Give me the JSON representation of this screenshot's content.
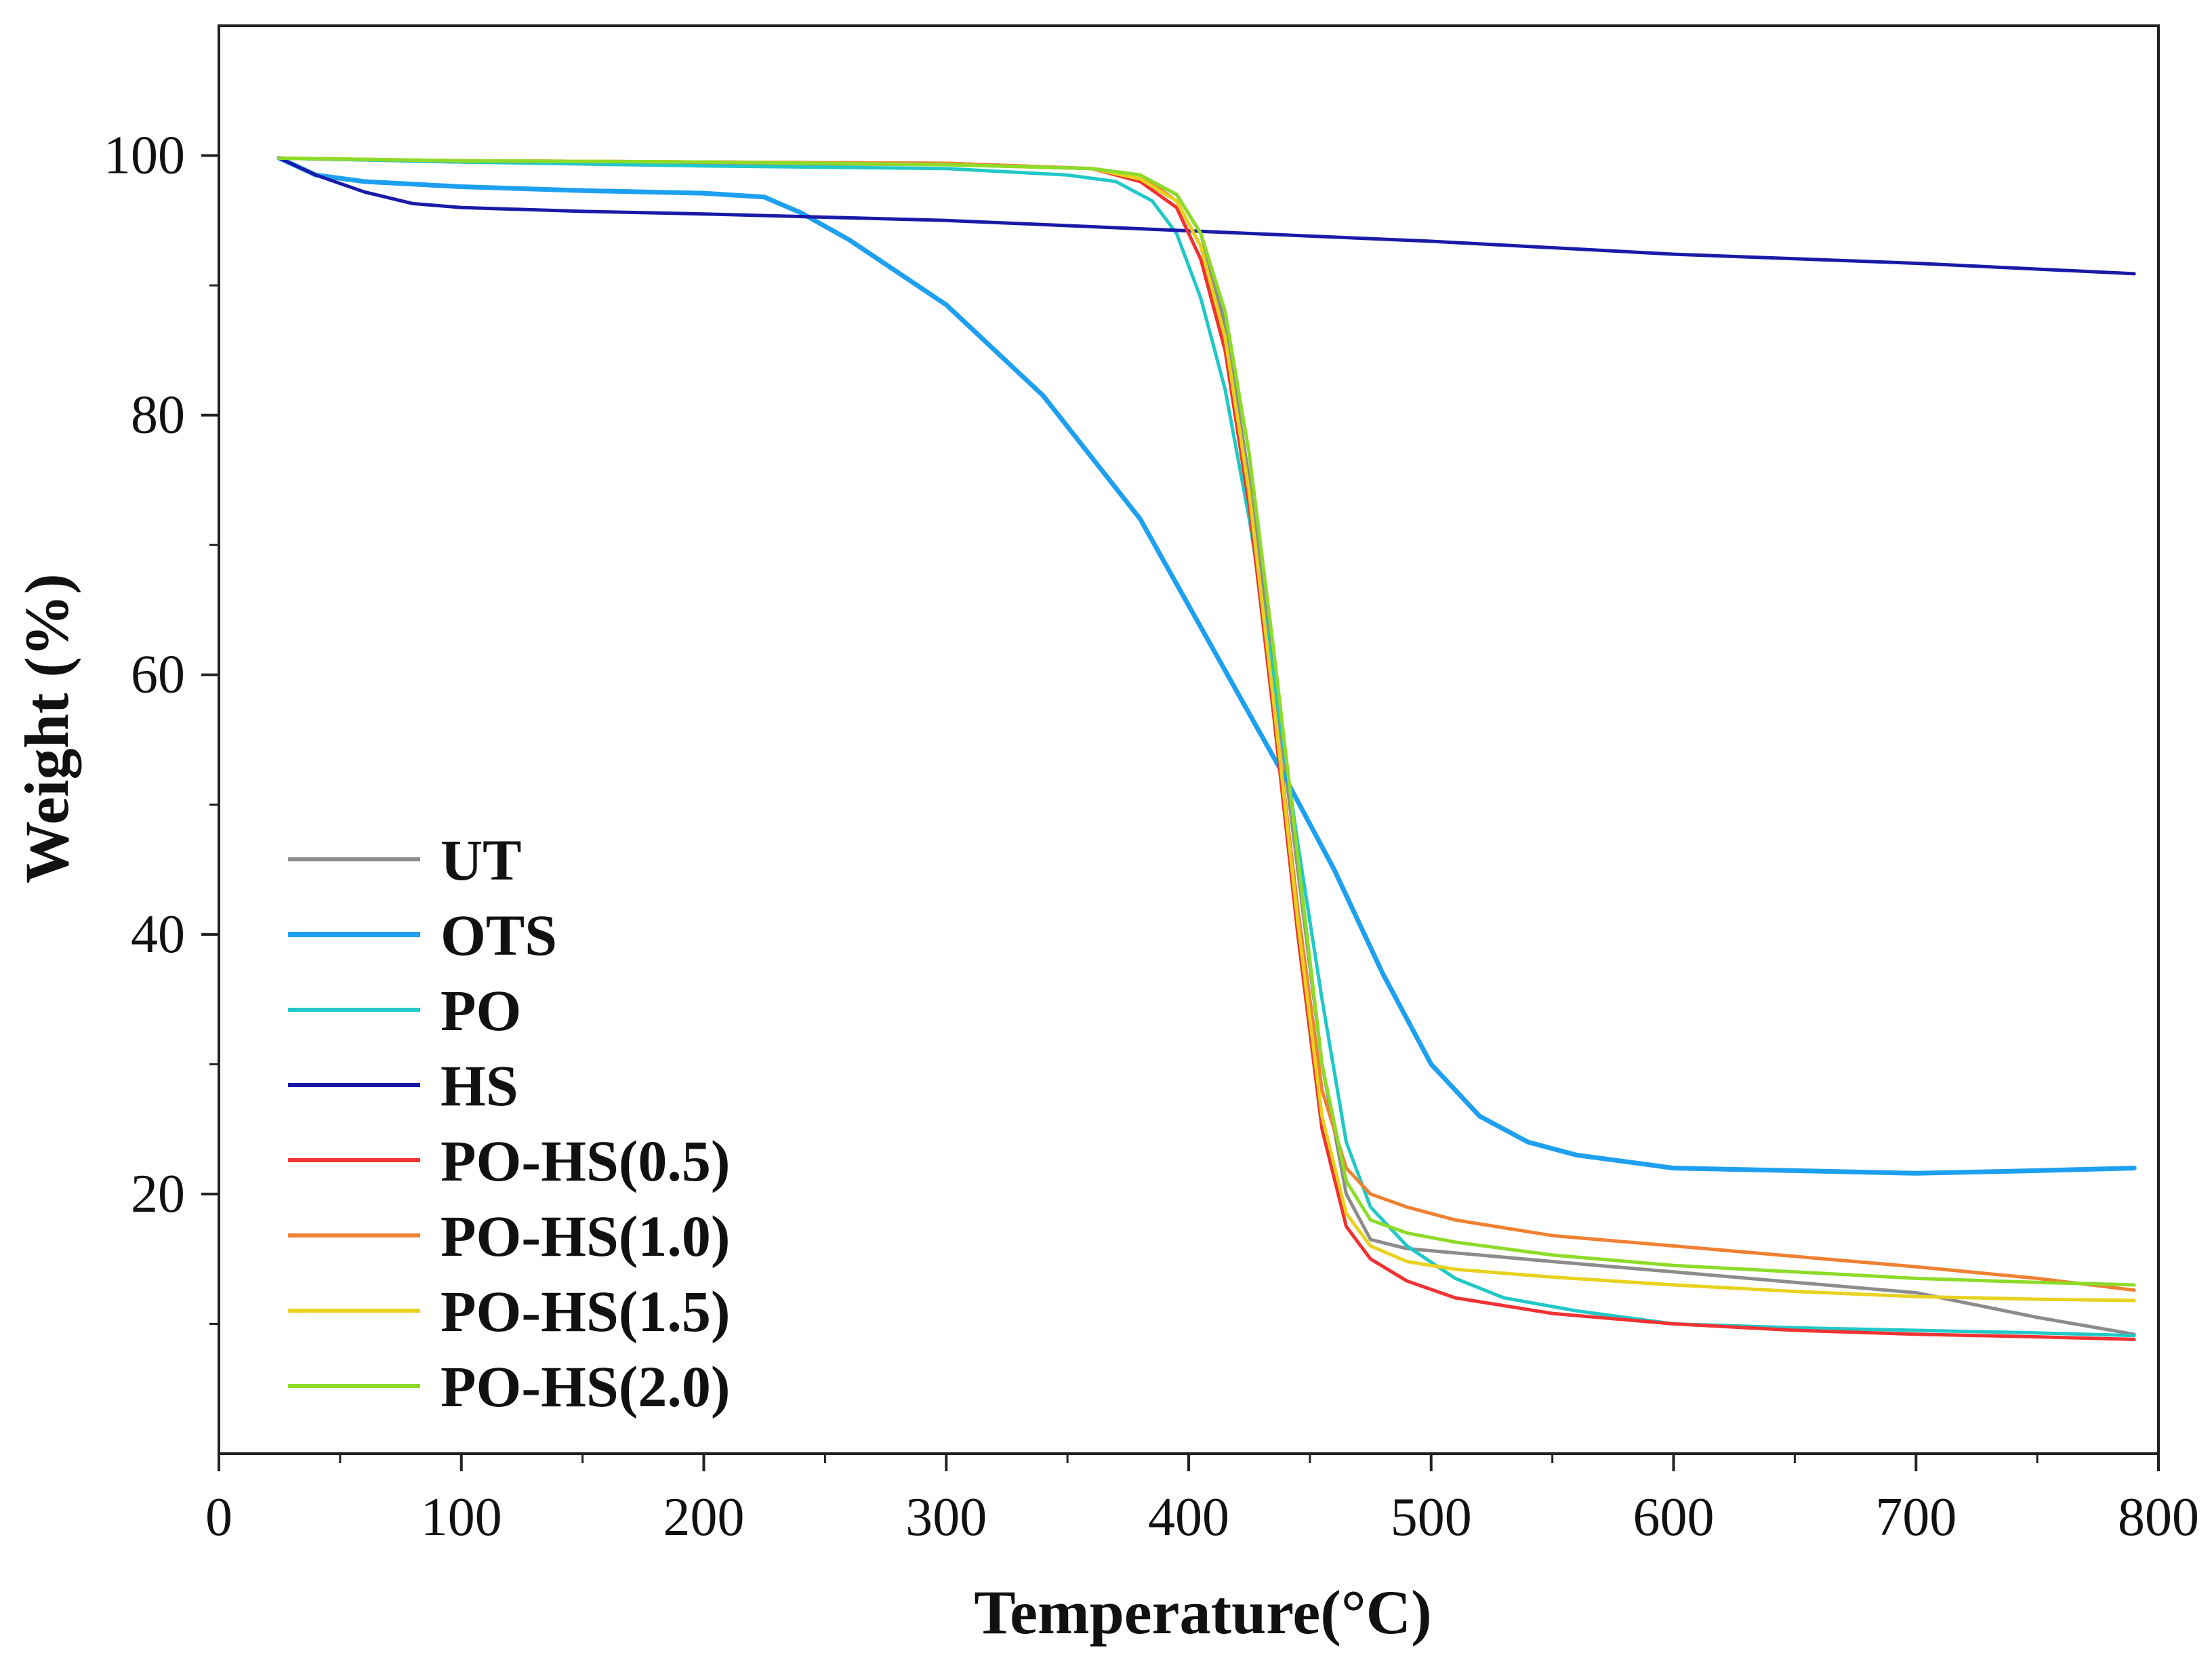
{
  "chart_data": {
    "type": "line",
    "title": "",
    "xlabel": "Temperature(°C)",
    "ylabel": "Weight (%)",
    "xlim": [
      0,
      800
    ],
    "ylim": [
      0,
      110
    ],
    "xticks": [
      "0",
      "100",
      "200",
      "300",
      "400",
      "500",
      "600",
      "700",
      "800"
    ],
    "yticks": [
      "20",
      "40",
      "60",
      "80",
      "100"
    ],
    "legend_position": "lower-left",
    "series": [
      {
        "name": "UT",
        "color": "#8c8c8c",
        "x": [
          25,
          100,
          200,
          300,
          360,
          380,
          395,
          405,
          415,
          425,
          435,
          445,
          455,
          465,
          475,
          490,
          550,
          600,
          650,
          700,
          750,
          790
        ],
        "y": [
          99.8,
          99.5,
          99.4,
          99.3,
          99.0,
          98.5,
          97.0,
          94.0,
          87.0,
          75.0,
          60.0,
          45.0,
          30.0,
          20.0,
          16.5,
          15.8,
          14.8,
          14.0,
          13.2,
          12.4,
          10.5,
          9.2
        ]
      },
      {
        "name": "OTS",
        "color": "#1ea0f0",
        "x": [
          25,
          40,
          60,
          100,
          150,
          200,
          225,
          240,
          260,
          300,
          340,
          380,
          410,
          440,
          460,
          480,
          500,
          520,
          540,
          560,
          600,
          650,
          700,
          750,
          790
        ],
        "y": [
          99.8,
          98.5,
          98.0,
          97.6,
          97.3,
          97.1,
          96.8,
          95.6,
          93.5,
          88.5,
          81.5,
          72.0,
          62.0,
          52.0,
          45.0,
          37.0,
          30.0,
          26.0,
          24.0,
          23.0,
          22.0,
          21.8,
          21.6,
          21.8,
          22.0
        ]
      },
      {
        "name": "PO",
        "color": "#20c8c8",
        "x": [
          25,
          100,
          200,
          300,
          350,
          370,
          385,
          395,
          405,
          415,
          425,
          435,
          445,
          455,
          465,
          475,
          490,
          510,
          530,
          560,
          600,
          650,
          700,
          750,
          790
        ],
        "y": [
          99.8,
          99.5,
          99.2,
          99.0,
          98.5,
          98.0,
          96.5,
          94.0,
          89.0,
          82.0,
          72.0,
          60.0,
          47.0,
          35.0,
          24.0,
          19.0,
          16.0,
          13.5,
          12.0,
          11.0,
          10.0,
          9.7,
          9.5,
          9.3,
          9.1
        ]
      },
      {
        "name": "HS",
        "color": "#1a1aa8",
        "x": [
          25,
          40,
          60,
          80,
          100,
          150,
          200,
          300,
          400,
          500,
          600,
          700,
          790
        ],
        "y": [
          99.8,
          98.5,
          97.2,
          96.3,
          96.0,
          95.7,
          95.5,
          95.0,
          94.2,
          93.4,
          92.4,
          91.7,
          90.9
        ]
      },
      {
        "name": "PO-HS(0.5)",
        "color": "#f03232",
        "x": [
          25,
          100,
          200,
          300,
          360,
          380,
          395,
          405,
          415,
          425,
          435,
          445,
          455,
          465,
          475,
          490,
          510,
          550,
          600,
          650,
          700,
          750,
          790
        ],
        "y": [
          99.8,
          99.6,
          99.5,
          99.4,
          99.0,
          98.0,
          96.0,
          92.0,
          85.0,
          73.0,
          57.0,
          40.0,
          25.0,
          17.5,
          15.0,
          13.3,
          12.0,
          10.8,
          10.0,
          9.5,
          9.2,
          9.0,
          8.8
        ]
      },
      {
        "name": "PO-HS(1.0)",
        "color": "#f08032",
        "x": [
          25,
          100,
          200,
          300,
          360,
          380,
          395,
          405,
          415,
          425,
          435,
          445,
          455,
          465,
          475,
          490,
          510,
          550,
          600,
          650,
          700,
          750,
          790
        ],
        "y": [
          99.8,
          99.6,
          99.5,
          99.4,
          99.0,
          98.5,
          96.5,
          93.0,
          86.0,
          74.0,
          58.0,
          42.0,
          28.0,
          22.0,
          20.0,
          19.0,
          18.0,
          16.8,
          16.0,
          15.2,
          14.4,
          13.5,
          12.6
        ]
      },
      {
        "name": "PO-HS(1.5)",
        "color": "#e8d21e",
        "x": [
          25,
          100,
          200,
          300,
          360,
          380,
          395,
          405,
          415,
          425,
          435,
          445,
          455,
          465,
          475,
          490,
          510,
          550,
          600,
          650,
          700,
          750,
          790
        ],
        "y": [
          99.8,
          99.6,
          99.5,
          99.3,
          99.0,
          98.2,
          96.5,
          93.0,
          86.0,
          74.0,
          58.0,
          41.0,
          26.0,
          18.5,
          16.0,
          14.8,
          14.2,
          13.6,
          13.0,
          12.5,
          12.1,
          11.9,
          11.8
        ]
      },
      {
        "name": "PO-HS(2.0)",
        "color": "#8cdc28",
        "x": [
          25,
          100,
          200,
          300,
          360,
          380,
          395,
          405,
          415,
          425,
          435,
          445,
          455,
          465,
          475,
          490,
          510,
          550,
          600,
          650,
          700,
          750,
          790
        ],
        "y": [
          99.8,
          99.6,
          99.5,
          99.3,
          99.0,
          98.5,
          97.0,
          94.0,
          88.0,
          77.0,
          62.0,
          46.0,
          30.0,
          21.0,
          18.0,
          17.0,
          16.3,
          15.3,
          14.5,
          14.0,
          13.5,
          13.2,
          13.0
        ]
      }
    ]
  }
}
